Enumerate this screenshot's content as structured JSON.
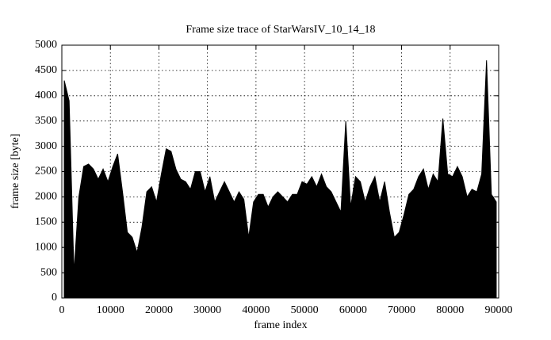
{
  "chart_data": {
    "type": "area",
    "title": "Frame size trace of StarWarsIV_10_14_18",
    "x_label": "frame index",
    "y_label": "frame size [byte]",
    "color": "#000000",
    "grid": true,
    "x": [
      500,
      1500,
      2500,
      3500,
      4500,
      5500,
      6500,
      7500,
      8500,
      9500,
      10500,
      11500,
      12500,
      13500,
      14500,
      15500,
      16500,
      17500,
      18500,
      19500,
      20500,
      21500,
      22500,
      23500,
      24500,
      25500,
      26500,
      27500,
      28500,
      29500,
      30500,
      31500,
      32500,
      33500,
      34500,
      35500,
      36500,
      37500,
      38500,
      39500,
      40500,
      41500,
      42500,
      43500,
      44500,
      45500,
      46500,
      47500,
      48500,
      49500,
      50500,
      51500,
      52500,
      53500,
      54500,
      55500,
      56500,
      57500,
      58500,
      59500,
      60500,
      61500,
      62500,
      63500,
      64500,
      65500,
      66500,
      67500,
      68500,
      69500,
      70500,
      71500,
      72500,
      73500,
      74500,
      75500,
      76500,
      77500,
      78500,
      79500,
      80500,
      81500,
      82500,
      83500,
      84500,
      85500,
      86500,
      87500,
      88500,
      89500
    ],
    "values": [
      4300,
      3900,
      500,
      2000,
      2600,
      2650,
      2550,
      2350,
      2550,
      2300,
      2600,
      2850,
      2100,
      1300,
      1200,
      900,
      1400,
      2100,
      2200,
      1900,
      2450,
      2950,
      2900,
      2550,
      2350,
      2300,
      2150,
      2500,
      2500,
      2100,
      2400,
      1900,
      2100,
      2300,
      2100,
      1900,
      2100,
      1950,
      1200,
      1900,
      2050,
      2050,
      1800,
      2000,
      2100,
      2000,
      1900,
      2050,
      2050,
      2300,
      2250,
      2400,
      2200,
      2450,
      2200,
      2100,
      1900,
      1700,
      3500,
      1800,
      2400,
      2300,
      1900,
      2200,
      2400,
      1900,
      2300,
      1700,
      1200,
      1300,
      1650,
      2050,
      2150,
      2400,
      2550,
      2150,
      2450,
      2300,
      3550,
      2450,
      2400,
      2600,
      2400,
      2000,
      2150,
      2100,
      2450,
      4700,
      2050,
      1900
    ],
    "xlim": [
      0,
      90000
    ],
    "xticks": [
      0,
      10000,
      20000,
      30000,
      40000,
      50000,
      60000,
      70000,
      80000,
      90000
    ],
    "ylim": [
      0,
      5000
    ],
    "yticks": [
      0,
      500,
      1000,
      1500,
      2000,
      2500,
      3000,
      3500,
      4000,
      4500,
      5000
    ]
  }
}
